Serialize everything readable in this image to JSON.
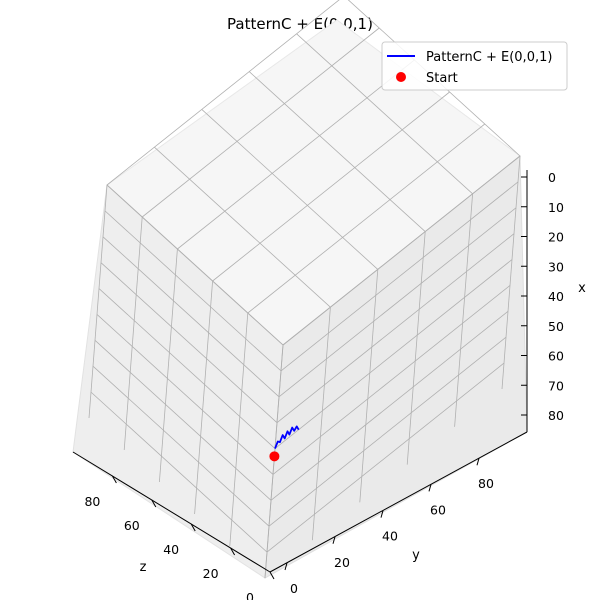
{
  "chart_data": {
    "type": "line",
    "projection": "3d",
    "title": "PatternC + E(0,0,1)",
    "xlabel": "x",
    "ylabel": "y",
    "zlabel": "z",
    "xlim": [
      0,
      90
    ],
    "ylim": [
      0,
      100
    ],
    "zlim": [
      0,
      100
    ],
    "x_ticks": [
      "0",
      "10",
      "20",
      "30",
      "40",
      "50",
      "60",
      "70",
      "80"
    ],
    "y_ticks": [
      "0",
      "20",
      "40",
      "60",
      "80"
    ],
    "z_ticks": [
      "80",
      "60",
      "40",
      "20",
      "0"
    ],
    "grid": true,
    "legend": {
      "placement": "top-right",
      "entries": [
        "PatternC + E(0,0,1)",
        "Start"
      ]
    },
    "series": [
      {
        "name": "PatternC + E(0,0,1)",
        "kind": "line",
        "color": "#0000ff",
        "points": [
          {
            "x": 40,
            "y": 0,
            "z": 0
          },
          {
            "x": 38,
            "y": 1,
            "z": 0
          },
          {
            "x": 39,
            "y": 2,
            "z": 0
          },
          {
            "x": 37,
            "y": 3,
            "z": 0
          },
          {
            "x": 39,
            "y": 4,
            "z": 0
          },
          {
            "x": 37,
            "y": 5,
            "z": 0
          },
          {
            "x": 39,
            "y": 6,
            "z": 0
          },
          {
            "x": 37,
            "y": 7,
            "z": 0
          },
          {
            "x": 39,
            "y": 8,
            "z": 0
          },
          {
            "x": 38,
            "y": 9,
            "z": 0
          },
          {
            "x": 40,
            "y": 10,
            "z": 0
          }
        ]
      },
      {
        "name": "Start",
        "kind": "scatter",
        "color": "#ff0000",
        "points": [
          {
            "x": 43,
            "y": 0,
            "z": 0
          }
        ]
      }
    ]
  }
}
